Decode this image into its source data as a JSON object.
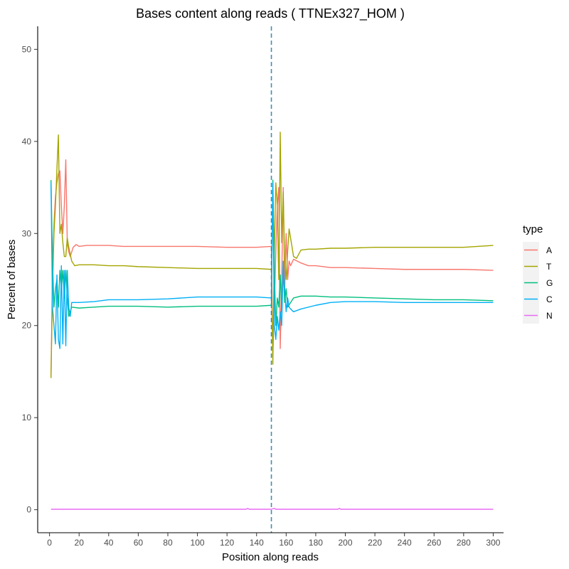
{
  "chart_data": {
    "type": "line",
    "title": "Bases content along reads ( TTNEx327_HOM )",
    "xlabel": "Position along reads",
    "ylabel": "Percent of bases",
    "xlim": [
      -8,
      307
    ],
    "ylim": [
      -2.5,
      52.5
    ],
    "x_ticks": [
      0,
      20,
      40,
      60,
      80,
      100,
      120,
      140,
      160,
      180,
      200,
      220,
      240,
      260,
      280,
      300
    ],
    "y_ticks": [
      0,
      10,
      20,
      30,
      40,
      50
    ],
    "x_tick_labels": [
      "0",
      "20",
      "40",
      "60",
      "80",
      "100",
      "120",
      "140",
      "160",
      "180",
      "200",
      "220",
      "240",
      "260",
      "280",
      "300"
    ],
    "y_tick_labels": [
      "0",
      "10",
      "20",
      "30",
      "40",
      "50"
    ],
    "vline": {
      "x": 150,
      "style": "dashed",
      "color": "#3a8fb7"
    },
    "grid": false,
    "legend": {
      "title": "type",
      "position": "right"
    },
    "series": [
      {
        "name": "A",
        "color": "#f8766d",
        "points": [
          [
            1,
            14.5
          ],
          [
            2,
            26
          ],
          [
            3,
            31
          ],
          [
            4,
            34
          ],
          [
            5,
            35.5
          ],
          [
            6,
            36.5
          ],
          [
            7,
            36.8
          ],
          [
            8,
            33
          ],
          [
            9,
            30
          ],
          [
            10,
            33
          ],
          [
            11,
            38
          ],
          [
            12,
            29
          ],
          [
            13,
            28
          ],
          [
            14,
            27.5
          ],
          [
            15,
            28
          ],
          [
            16,
            28.5
          ],
          [
            18,
            28.8
          ],
          [
            20,
            28.6
          ],
          [
            25,
            28.7
          ],
          [
            30,
            28.7
          ],
          [
            40,
            28.7
          ],
          [
            50,
            28.6
          ],
          [
            60,
            28.6
          ],
          [
            80,
            28.6
          ],
          [
            100,
            28.6
          ],
          [
            120,
            28.5
          ],
          [
            140,
            28.5
          ],
          [
            150,
            28.6
          ],
          [
            151,
            17
          ],
          [
            152,
            22
          ],
          [
            153,
            28
          ],
          [
            154,
            33
          ],
          [
            155,
            35
          ],
          [
            156,
            17.5
          ],
          [
            157,
            25
          ],
          [
            158,
            35
          ],
          [
            159,
            24
          ],
          [
            160,
            30
          ],
          [
            161,
            25
          ],
          [
            162,
            27
          ],
          [
            163,
            26.5
          ],
          [
            165,
            27.2
          ],
          [
            170,
            26.8
          ],
          [
            175,
            26.5
          ],
          [
            180,
            26.5
          ],
          [
            190,
            26.3
          ],
          [
            200,
            26.3
          ],
          [
            220,
            26.2
          ],
          [
            240,
            26.1
          ],
          [
            260,
            26.1
          ],
          [
            280,
            26.1
          ],
          [
            300,
            26.0
          ]
        ]
      },
      {
        "name": "T",
        "color": "#a3a500",
        "points": [
          [
            1,
            14.3
          ],
          [
            2,
            24
          ],
          [
            3,
            30
          ],
          [
            4,
            33
          ],
          [
            5,
            37
          ],
          [
            6,
            40.7
          ],
          [
            7,
            30
          ],
          [
            8,
            31
          ],
          [
            9,
            29
          ],
          [
            10,
            27.5
          ],
          [
            11,
            27.5
          ],
          [
            12,
            29.5
          ],
          [
            13,
            28.5
          ],
          [
            15,
            27
          ],
          [
            17,
            26.5
          ],
          [
            20,
            26.6
          ],
          [
            30,
            26.6
          ],
          [
            40,
            26.5
          ],
          [
            50,
            26.5
          ],
          [
            60,
            26.4
          ],
          [
            80,
            26.3
          ],
          [
            100,
            26.2
          ],
          [
            120,
            26.2
          ],
          [
            140,
            26.2
          ],
          [
            150,
            26.1
          ],
          [
            151,
            15.8
          ],
          [
            152,
            28
          ],
          [
            153,
            35.5
          ],
          [
            154,
            33
          ],
          [
            155,
            25
          ],
          [
            156,
            41
          ],
          [
            157,
            29
          ],
          [
            158,
            34.5
          ],
          [
            159,
            27
          ],
          [
            160,
            25
          ],
          [
            161,
            28
          ],
          [
            162,
            30.5
          ],
          [
            163,
            29.5
          ],
          [
            165,
            27.5
          ],
          [
            167,
            27.3
          ],
          [
            170,
            28.2
          ],
          [
            175,
            28.3
          ],
          [
            180,
            28.3
          ],
          [
            190,
            28.4
          ],
          [
            200,
            28.4
          ],
          [
            220,
            28.5
          ],
          [
            240,
            28.5
          ],
          [
            260,
            28.5
          ],
          [
            280,
            28.5
          ],
          [
            300,
            28.7
          ]
        ]
      },
      {
        "name": "G",
        "color": "#00bf7d",
        "points": [
          [
            1,
            35.8
          ],
          [
            2,
            27
          ],
          [
            3,
            22
          ],
          [
            4,
            24
          ],
          [
            5,
            25
          ],
          [
            6,
            22
          ],
          [
            7,
            26
          ],
          [
            8,
            24
          ],
          [
            9,
            26
          ],
          [
            10,
            23
          ],
          [
            11,
            26
          ],
          [
            12,
            23
          ],
          [
            13,
            21
          ],
          [
            14,
            21.5
          ],
          [
            15,
            22
          ],
          [
            20,
            21.9
          ],
          [
            30,
            22
          ],
          [
            40,
            22.1
          ],
          [
            50,
            22.1
          ],
          [
            60,
            22.1
          ],
          [
            80,
            22
          ],
          [
            100,
            22.1
          ],
          [
            120,
            22.1
          ],
          [
            140,
            22.1
          ],
          [
            150,
            22.2
          ],
          [
            151,
            35.8
          ],
          [
            152,
            26
          ],
          [
            153,
            20
          ],
          [
            154,
            23
          ],
          [
            155,
            22
          ],
          [
            156,
            25.5
          ],
          [
            157,
            21.5
          ],
          [
            158,
            26
          ],
          [
            159,
            22.5
          ],
          [
            160,
            24
          ],
          [
            161,
            22
          ],
          [
            163,
            22.5
          ],
          [
            165,
            23
          ],
          [
            170,
            23.2
          ],
          [
            180,
            23.2
          ],
          [
            190,
            23.1
          ],
          [
            200,
            23.1
          ],
          [
            220,
            23
          ],
          [
            240,
            22.9
          ],
          [
            260,
            22.8
          ],
          [
            280,
            22.8
          ],
          [
            300,
            22.7
          ]
        ]
      },
      {
        "name": "C",
        "color": "#00b0f6",
        "points": [
          [
            1,
            35.5
          ],
          [
            2,
            22
          ],
          [
            3,
            20
          ],
          [
            4,
            18
          ],
          [
            5,
            25.5
          ],
          [
            6,
            18.5
          ],
          [
            7,
            17.5
          ],
          [
            8,
            26.5
          ],
          [
            9,
            18
          ],
          [
            10,
            26
          ],
          [
            11,
            17.8
          ],
          [
            12,
            26
          ],
          [
            13,
            22
          ],
          [
            14,
            21
          ],
          [
            15,
            22.5
          ],
          [
            20,
            22.5
          ],
          [
            30,
            22.6
          ],
          [
            40,
            22.8
          ],
          [
            50,
            22.8
          ],
          [
            60,
            22.8
          ],
          [
            80,
            22.9
          ],
          [
            100,
            23.1
          ],
          [
            120,
            23.1
          ],
          [
            140,
            23.1
          ],
          [
            150,
            23.0
          ],
          [
            151,
            35.5
          ],
          [
            152,
            20
          ],
          [
            153,
            18.5
          ],
          [
            154,
            21
          ],
          [
            155,
            19.5
          ],
          [
            156,
            21.5
          ],
          [
            157,
            20
          ],
          [
            158,
            27
          ],
          [
            159,
            24
          ],
          [
            160,
            21.5
          ],
          [
            161,
            23
          ],
          [
            162,
            22
          ],
          [
            163,
            21.8
          ],
          [
            165,
            21.5
          ],
          [
            170,
            21.8
          ],
          [
            180,
            22.2
          ],
          [
            190,
            22.5
          ],
          [
            200,
            22.6
          ],
          [
            220,
            22.6
          ],
          [
            240,
            22.5
          ],
          [
            260,
            22.5
          ],
          [
            280,
            22.5
          ],
          [
            300,
            22.5
          ]
        ]
      },
      {
        "name": "N",
        "color": "#e76bf3",
        "points": [
          [
            1,
            0.05
          ],
          [
            50,
            0.05
          ],
          [
            100,
            0.05
          ],
          [
            133,
            0.05
          ],
          [
            134,
            0.15
          ],
          [
            135,
            0.05
          ],
          [
            150,
            0.05
          ],
          [
            152,
            0.15
          ],
          [
            153,
            0.05
          ],
          [
            195,
            0.05
          ],
          [
            196,
            0.15
          ],
          [
            197,
            0.05
          ],
          [
            250,
            0.05
          ],
          [
            300,
            0.05
          ]
        ]
      }
    ]
  }
}
